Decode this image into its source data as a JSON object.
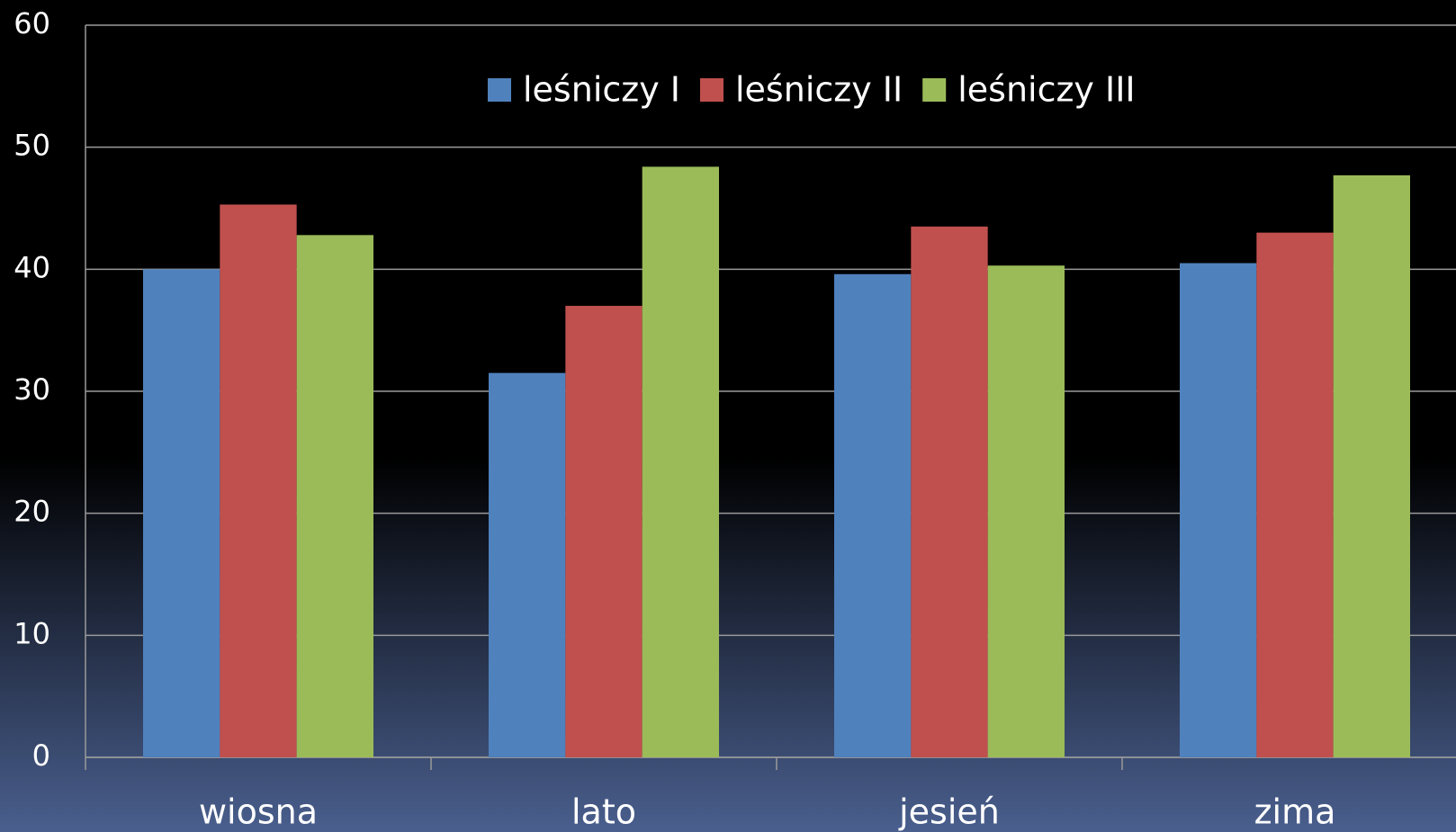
{
  "chart_data": {
    "type": "bar",
    "categories": [
      "wiosna",
      "lato",
      "jesień",
      "zima"
    ],
    "series": [
      {
        "name": "leśniczy I",
        "color": "#4f81bd",
        "values": [
          40.0,
          31.5,
          39.6,
          40.5
        ]
      },
      {
        "name": "leśniczy II",
        "color": "#c0504d",
        "values": [
          45.3,
          37.0,
          43.5,
          43.0
        ]
      },
      {
        "name": "leśniczy III",
        "color": "#9bbb59",
        "values": [
          42.8,
          48.4,
          40.3,
          47.7
        ]
      }
    ],
    "ylim": [
      0,
      60
    ],
    "yticks": [
      0,
      10,
      20,
      30,
      40,
      50,
      60
    ],
    "grid": true,
    "legend": "top"
  }
}
